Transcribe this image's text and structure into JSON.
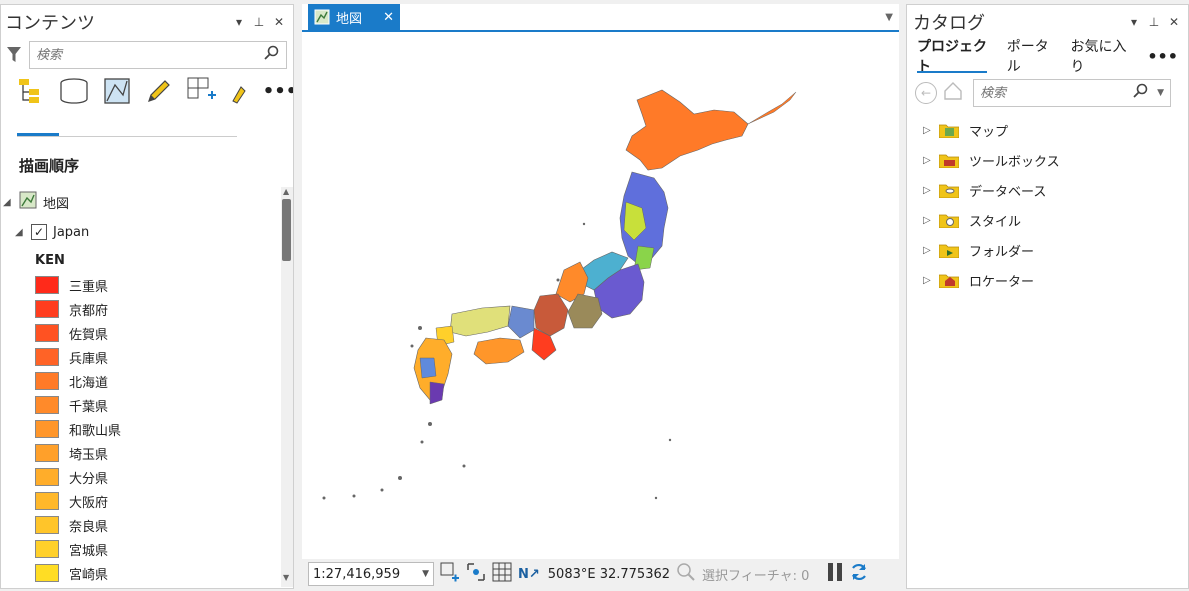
{
  "contents": {
    "title": "コンテンツ",
    "search_placeholder": "検索",
    "section_title": "描画順序",
    "map_node": "地図",
    "layer_node": "Japan",
    "field_name": "KEN",
    "legend": [
      {
        "label": "三重県",
        "color": "#ff2a1a"
      },
      {
        "label": "京都府",
        "color": "#ff3d1f"
      },
      {
        "label": "佐賀県",
        "color": "#ff5222"
      },
      {
        "label": "兵庫県",
        "color": "#ff6326"
      },
      {
        "label": "北海道",
        "color": "#ff7a28"
      },
      {
        "label": "千葉県",
        "color": "#ff8a2a"
      },
      {
        "label": "和歌山県",
        "color": "#ff962a"
      },
      {
        "label": "埼玉県",
        "color": "#ffa02a"
      },
      {
        "label": "大分県",
        "color": "#ffad2a"
      },
      {
        "label": "大阪府",
        "color": "#ffb82a"
      },
      {
        "label": "奈良県",
        "color": "#ffc52a"
      },
      {
        "label": "宮城県",
        "color": "#ffd02a"
      },
      {
        "label": "宮崎県",
        "color": "#ffdd24"
      },
      {
        "label": "宮崎県",
        "color": "#ffe31e"
      }
    ]
  },
  "map": {
    "tab_label": "地図",
    "scale": "1:27,416,959",
    "coords": "5083°E 32.775362",
    "selected_features": "選択フィーチャ: 0"
  },
  "catalog": {
    "title": "カタログ",
    "tabs": [
      "プロジェクト",
      "ポータル",
      "お気に入り"
    ],
    "search_placeholder": "検索",
    "items": [
      {
        "label": "マップ"
      },
      {
        "label": "ツールボックス"
      },
      {
        "label": "データベース"
      },
      {
        "label": "スタイル"
      },
      {
        "label": "フォルダー"
      },
      {
        "label": "ロケーター"
      }
    ]
  },
  "colors": {
    "accent": "#1a7bc9"
  }
}
